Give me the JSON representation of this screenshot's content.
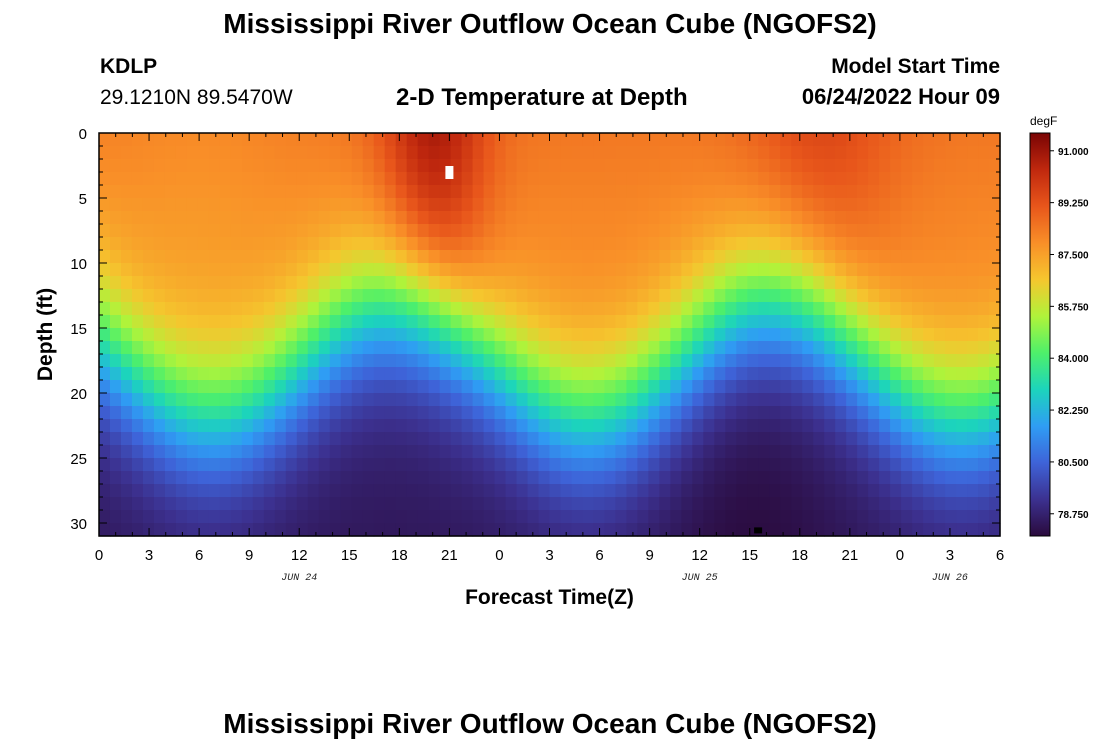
{
  "header": {
    "title": "Mississippi River Outflow Ocean Cube (NGOFS2)",
    "station": "KDLP",
    "coords": "29.1210N  89.5470W",
    "subtitle": "2-D Temperature at Depth",
    "model_start_label": "Model Start Time",
    "model_start_value": "06/24/2022 Hour 09"
  },
  "footer": {
    "title": "Mississippi River Outflow Ocean Cube (NGOFS2)"
  },
  "chart_data": {
    "type": "heatmap",
    "xlabel": "Forecast Time(Z)",
    "ylabel": "Depth (ft)",
    "x_range_hours": [
      0,
      54
    ],
    "y_range": [
      0,
      31
    ],
    "x_ticks": [
      {
        "hour": 0,
        "label": "0"
      },
      {
        "hour": 3,
        "label": "3"
      },
      {
        "hour": 6,
        "label": "6"
      },
      {
        "hour": 9,
        "label": "9"
      },
      {
        "hour": 12,
        "label": "12"
      },
      {
        "hour": 15,
        "label": "15"
      },
      {
        "hour": 18,
        "label": "18"
      },
      {
        "hour": 21,
        "label": "21"
      },
      {
        "hour": 24,
        "label": "0"
      },
      {
        "hour": 27,
        "label": "3"
      },
      {
        "hour": 30,
        "label": "6"
      },
      {
        "hour": 33,
        "label": "9"
      },
      {
        "hour": 36,
        "label": "12"
      },
      {
        "hour": 39,
        "label": "15"
      },
      {
        "hour": 42,
        "label": "18"
      },
      {
        "hour": 45,
        "label": "21"
      },
      {
        "hour": 48,
        "label": "0"
      },
      {
        "hour": 51,
        "label": "3"
      },
      {
        "hour": 54,
        "label": "6"
      }
    ],
    "date_labels": [
      {
        "hour": 12,
        "label": "JUN 24"
      },
      {
        "hour": 36,
        "label": "JUN 25"
      },
      {
        "hour": 51,
        "label": "JUN 26"
      }
    ],
    "y_ticks": [
      0,
      5,
      10,
      15,
      20,
      25,
      30
    ],
    "colorbar": {
      "unit": "degF",
      "min": 78.0,
      "max": 91.6,
      "ticks": [
        "91.000",
        "89.250",
        "87.500",
        "85.750",
        "84.000",
        "82.250",
        "80.500",
        "78.750"
      ],
      "colors": [
        "#2a0a3c",
        "#3c3190",
        "#3e63d8",
        "#2f9df4",
        "#1cd4bc",
        "#4ef06a",
        "#b0f33a",
        "#f5c62e",
        "#f98f28",
        "#e8561b",
        "#c0280e",
        "#7a0404"
      ]
    },
    "markers": [
      {
        "hour": 21,
        "depth": 3.0,
        "color": "#ffffff",
        "value_at_marker": "max"
      },
      {
        "hour": 39.5,
        "depth": 30.8,
        "color": "#000000",
        "value_at_marker": "min"
      }
    ],
    "thermocline_note": "Temperature near-surface ~88-91 degF, decreasing with depth to ~78.75 degF near 31 ft; thermocline depth oscillates with minimum depth near hours 18 and 40, and maximum depth near hours 5 and 51."
  }
}
